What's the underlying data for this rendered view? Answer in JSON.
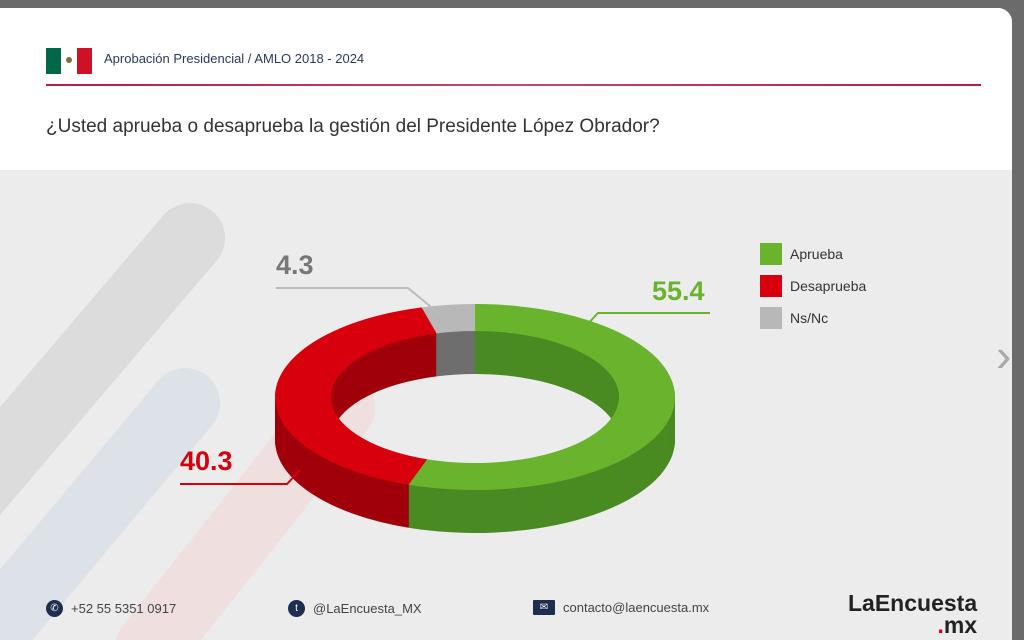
{
  "header": {
    "breadcrumb": "Aprobación Presidencial / AMLO 2018 - 2024",
    "question": "¿Usted aprueba o desaprueba la gestión del Presidente López Obrador?"
  },
  "chart_data": {
    "type": "pie",
    "variant": "3d-donut",
    "categories": [
      "Aprueba",
      "Desaprueba",
      "Ns/Nc"
    ],
    "values": [
      55.4,
      40.3,
      4.3
    ],
    "colors": [
      "#6ab42d",
      "#d9000d",
      "#b8b8b8"
    ],
    "legend": "right",
    "data_labels": [
      "55.4",
      "40.3",
      "4.3"
    ]
  },
  "footer": {
    "phone": "+52 55 5351 0917",
    "twitter": "@LaEncuesta_MX",
    "email": "contacto@laencuesta.mx",
    "logo": "LaEncuesta .mx"
  },
  "icons": [
    "whatsapp-icon",
    "twitter-icon",
    "mail-icon",
    "chevron-right-icon",
    "mexico-flag-icon"
  ]
}
